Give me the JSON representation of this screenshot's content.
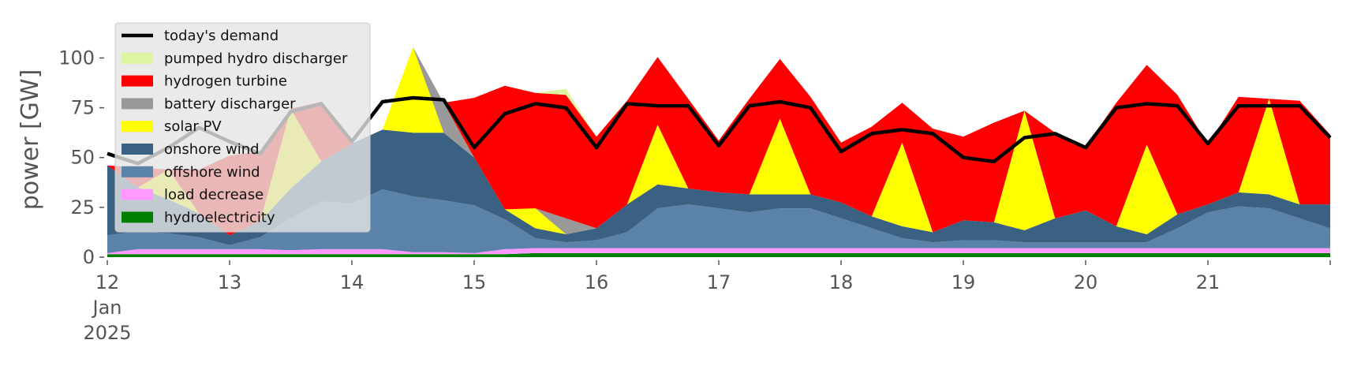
{
  "chart_data": {
    "type": "area",
    "ylabel": "power [GW]",
    "ylim": [
      0,
      118
    ],
    "yticks": [
      0,
      25,
      50,
      75,
      100
    ],
    "xlim": [
      12.0,
      22.0
    ],
    "xticks": [
      {
        "value": 12,
        "label": "12",
        "sub": [
          "Jan",
          "2025"
        ]
      },
      {
        "value": 13,
        "label": "13"
      },
      {
        "value": 14,
        "label": "14"
      },
      {
        "value": 15,
        "label": "15"
      },
      {
        "value": 16,
        "label": "16"
      },
      {
        "value": 17,
        "label": "17"
      },
      {
        "value": 18,
        "label": "18"
      },
      {
        "value": 19,
        "label": "19"
      },
      {
        "value": 20,
        "label": "20"
      },
      {
        "value": 21,
        "label": "21"
      }
    ],
    "legend_position": "top-left",
    "x": [
      12.0,
      12.25,
      12.5,
      12.75,
      13.0,
      13.25,
      13.5,
      13.75,
      14.0,
      14.25,
      14.5,
      14.75,
      15.0,
      15.25,
      15.5,
      15.75,
      16.0,
      16.25,
      16.5,
      16.75,
      17.0,
      17.25,
      17.5,
      17.75,
      18.0,
      18.25,
      18.5,
      18.75,
      19.0,
      19.25,
      19.5,
      19.75,
      20.0,
      20.25,
      20.5,
      20.75,
      21.0,
      21.25,
      21.5,
      21.75,
      22.0
    ],
    "series": [
      {
        "name": "hydroelectricity",
        "color": "#008000",
        "values": [
          1.5,
          1.5,
          1.5,
          1.5,
          1.5,
          1.5,
          1.5,
          1.5,
          1.5,
          1.5,
          1.5,
          1.5,
          1.5,
          1.5,
          2.0,
          2.0,
          2.0,
          2.0,
          2.0,
          2.0,
          2.0,
          2.0,
          2.0,
          2.0,
          2.0,
          2.0,
          2.0,
          2.0,
          2.0,
          2.0,
          2.0,
          2.0,
          2.0,
          2.0,
          2.0,
          2.0,
          2.0,
          2.0,
          2.0,
          2.0,
          2.0
        ]
      },
      {
        "name": "load decrease",
        "color": "#ff99ff",
        "values": [
          0.5,
          2.5,
          2.5,
          2.5,
          2.5,
          2.5,
          2.0,
          2.5,
          2.5,
          2.5,
          1.0,
          1.0,
          0.5,
          2.5,
          2.5,
          2.5,
          2.5,
          2.5,
          2.5,
          2.5,
          2.5,
          2.5,
          2.5,
          2.5,
          2.5,
          2.5,
          2.5,
          2.5,
          2.5,
          2.5,
          2.5,
          2.5,
          2.5,
          2.5,
          2.5,
          2.5,
          2.5,
          2.5,
          2.5,
          2.5,
          2.5
        ]
      },
      {
        "name": "offshore wind",
        "color": "#5b82a8",
        "values": [
          9,
          9,
          8,
          6,
          2,
          6,
          16,
          24,
          23,
          30,
          28,
          26,
          24,
          15,
          5,
          3,
          4,
          8,
          20,
          22,
          20,
          18,
          20,
          20,
          15,
          10,
          5,
          3,
          4,
          4,
          3,
          3,
          3,
          3,
          3,
          10,
          18,
          21,
          20,
          15,
          10
        ]
      },
      {
        "name": "onshore wind",
        "color": "#3b6182",
        "values": [
          35,
          22,
          17,
          12,
          5,
          8,
          15,
          20,
          30,
          30,
          32,
          34,
          24,
          5,
          5,
          4,
          6,
          14,
          12,
          8,
          8,
          9,
          7,
          7,
          8,
          6,
          6,
          5,
          10,
          9,
          6,
          12,
          16,
          8,
          4,
          7,
          4,
          7,
          7,
          7,
          12
        ]
      },
      {
        "name": "solar PV",
        "color": "#ffff00",
        "values": [
          0,
          0,
          15,
          0,
          0,
          0,
          40,
          0,
          0,
          0,
          43,
          0,
          0,
          0,
          10,
          0,
          0,
          0,
          30,
          0,
          0,
          0,
          38,
          0,
          0,
          0,
          42,
          0,
          0,
          0,
          60,
          0,
          0,
          0,
          45,
          0,
          0,
          0,
          48,
          0,
          0
        ]
      },
      {
        "name": "battery discharger",
        "color": "#999999",
        "values": [
          0,
          0,
          0,
          0,
          0,
          0,
          0,
          0,
          0,
          0,
          0,
          15,
          0,
          0,
          0,
          8,
          0,
          0,
          0,
          0,
          0,
          0,
          0,
          0,
          0,
          0,
          0,
          0,
          0,
          0,
          0,
          0,
          0,
          0,
          0,
          0,
          0,
          0,
          0,
          0,
          0
        ]
      },
      {
        "name": "hydrogen turbine",
        "color": "#ff0000",
        "values": [
          0,
          10,
          0,
          22,
          40,
          35,
          0,
          30,
          0,
          0,
          0,
          0,
          30,
          62,
          58,
          62,
          46,
          52,
          34,
          45,
          26,
          48,
          30,
          49,
          30,
          45,
          20,
          52,
          42,
          50,
          0,
          43,
          32,
          62,
          40,
          60,
          30,
          48,
          0,
          52,
          35
        ]
      },
      {
        "name": "pumped hydro discharger",
        "color": "#ddf5a0",
        "values": [
          0,
          0,
          0,
          0,
          0,
          0,
          0,
          0,
          0,
          0,
          0,
          0,
          0,
          0,
          0,
          3,
          0,
          0,
          0,
          0,
          0,
          0,
          0,
          0,
          0,
          0,
          0,
          0,
          0,
          0,
          0,
          0,
          0,
          0,
          0,
          0,
          0,
          0,
          0,
          0,
          0
        ]
      }
    ],
    "demand": {
      "name": "today's demand",
      "color": "#000000",
      "values": [
        52,
        47,
        55,
        65,
        58,
        52,
        73,
        77,
        58,
        78,
        80,
        79,
        55,
        72,
        77,
        75,
        55,
        77,
        76,
        76,
        56,
        76,
        78,
        75,
        53,
        62,
        64,
        62,
        50,
        48,
        60,
        62,
        55,
        75,
        77,
        76,
        57,
        76,
        76,
        76,
        60
      ]
    },
    "legend": [
      "today's demand",
      "pumped hydro discharger",
      "hydrogen turbine",
      "battery discharger",
      "solar PV",
      "onshore wind",
      "offshore wind",
      "load decrease",
      "hydroelectricity"
    ]
  }
}
